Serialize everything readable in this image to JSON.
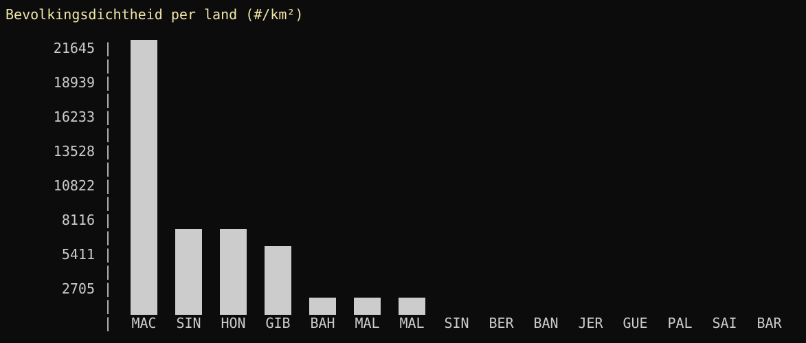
{
  "chart_data": {
    "type": "bar",
    "title": "Bevolkingsdichtheid per land (#/km²)",
    "categories": [
      "MAC",
      "SIN",
      "HON",
      "GIB",
      "BAH",
      "MAL",
      "MAL",
      "SIN",
      "BER",
      "BAN",
      "JER",
      "GUE",
      "PAL",
      "SAI",
      "BAR"
    ],
    "values": [
      21645,
      6764,
      6764,
      5411,
      1353,
      1353,
      1353,
      0,
      0,
      0,
      0,
      0,
      0,
      0,
      0
    ],
    "y_ticks": [
      "21645",
      "18939",
      "16233",
      "13528",
      "10822",
      "8116",
      "5411",
      "2705"
    ],
    "ylim": [
      0,
      21645
    ],
    "grid": false,
    "legend": "none",
    "colors": {
      "background": "#0c0c0c",
      "bar": "#cccccc",
      "text": "#cccccc",
      "title": "#f0e6a8"
    }
  }
}
